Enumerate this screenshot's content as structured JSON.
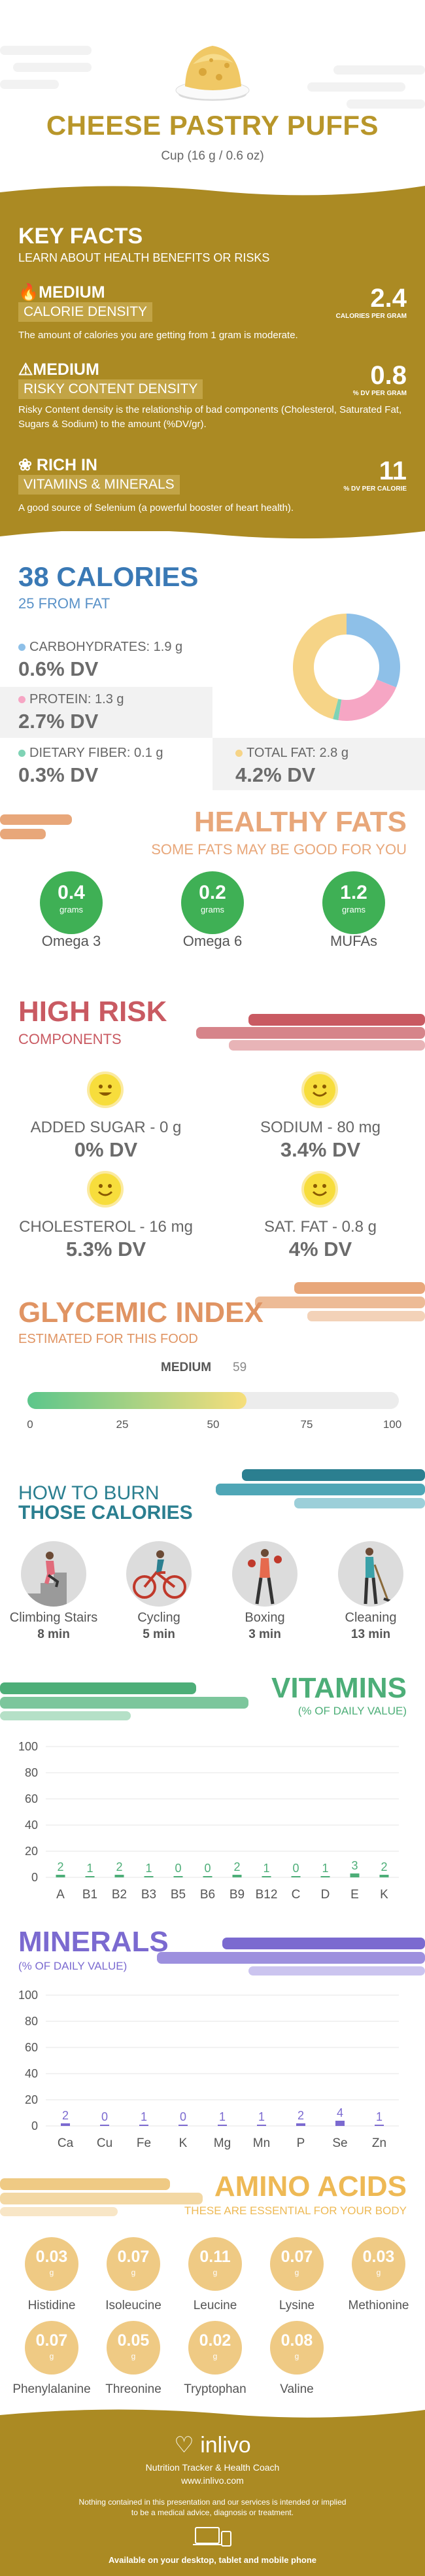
{
  "header": {
    "title": "CHEESE PASTRY PUFFS",
    "serving": "Cup (16 g / 0.6 oz)"
  },
  "key_facts": {
    "title": "KEY FACTS",
    "subtitle": "LEARN ABOUT HEALTH BENEFITS OR RISKS",
    "items": [
      {
        "level": "MEDIUM",
        "label": "CALORIE DENSITY",
        "value": "2.4",
        "unit": "CALORIES PER GRAM",
        "text": "The amount of calories you are getting from 1 gram is moderate."
      },
      {
        "level": "MEDIUM",
        "label": "RISKY CONTENT DENSITY",
        "value": "0.8",
        "unit": "% DV PER GRAM",
        "text": "Risky Content density is the relationship of bad components (Cholesterol, Saturated Fat, Sugars & Sodium) to the amount (%DV/gr)."
      },
      {
        "level": "RICH  IN",
        "label": "VITAMINS & MINERALS",
        "value": "11",
        "unit": "% DV PER CALORIE",
        "text": "A good source of Selenium (a powerful booster of heart health)."
      }
    ]
  },
  "calories": {
    "title": "38 CALORIES",
    "subtitle": "25 FROM FAT",
    "macros": [
      {
        "label": "CARBOHYDRATES: 1.9 g",
        "dv": "0.6% DV",
        "color": "#8ec0e8"
      },
      {
        "label": "PROTEIN: 1.3 g",
        "dv": "2.7% DV",
        "color": "#f6a6c4"
      },
      {
        "label": "DIETARY FIBER: 0.1 g",
        "dv": "0.3% DV",
        "color": "#7fd3b5"
      },
      {
        "label": "TOTAL FAT: 2.8 g",
        "dv": "4.2% DV",
        "color": "#f6d487"
      }
    ],
    "donut": [
      {
        "name": "carbs",
        "value": 1.9,
        "color": "#8ec0e8"
      },
      {
        "name": "protein",
        "value": 1.3,
        "color": "#f6a6c4"
      },
      {
        "name": "fiber",
        "value": 0.1,
        "color": "#7fd3b5"
      },
      {
        "name": "fat",
        "value": 2.8,
        "color": "#f6d487"
      }
    ]
  },
  "healthy_fats": {
    "title": "HEALTHY FATS",
    "subtitle": "SOME FATS MAY BE GOOD FOR YOU",
    "unit": "grams",
    "items": [
      {
        "value": "0.4",
        "label": "Omega 3"
      },
      {
        "value": "0.2",
        "label": "Omega 6"
      },
      {
        "value": "1.2",
        "label": "MUFAs"
      }
    ]
  },
  "high_risk": {
    "title": "HIGH RISK",
    "subtitle": "COMPONENTS",
    "items": [
      {
        "label": "ADDED SUGAR - 0 g",
        "dv": "0% DV"
      },
      {
        "label": "SODIUM - 80 mg",
        "dv": "3.4% DV"
      },
      {
        "label": "CHOLESTEROL - 16 mg",
        "dv": "5.3% DV"
      },
      {
        "label": "SAT. FAT - 0.8 g",
        "dv": "4% DV"
      }
    ]
  },
  "glycemic": {
    "title": "GLYCEMIC INDEX",
    "subtitle": "ESTIMATED FOR THIS FOOD",
    "level": "MEDIUM",
    "value": 59,
    "value_text": "59",
    "ticks": [
      "0",
      "25",
      "50",
      "75",
      "100"
    ]
  },
  "burn": {
    "title_1": "HOW TO BURN",
    "title_2": "THOSE CALORIES",
    "items": [
      {
        "label": "Climbing Stairs",
        "time": "8 min",
        "icon": "stairs-person-icon"
      },
      {
        "label": "Cycling",
        "time": "5 min",
        "icon": "cyclist-icon"
      },
      {
        "label": "Boxing",
        "time": "3 min",
        "icon": "boxer-icon"
      },
      {
        "label": "Cleaning",
        "time": "13 min",
        "icon": "cleaning-person-icon"
      }
    ]
  },
  "vitamins": {
    "title": "VITAMINS",
    "subtitle": "(% OF DAILY VALUE)",
    "color": "#4dae78"
  },
  "minerals": {
    "title": "MINERALS",
    "subtitle": "(% OF DAILY VALUE)",
    "color": "#7b6ad0"
  },
  "amino": {
    "title": "AMINO ACIDS",
    "subtitle": "THESE ARE ESSENTIAL FOR YOUR BODY",
    "unit": "g",
    "items": [
      {
        "value": "0.03",
        "label": "Histidine"
      },
      {
        "value": "0.07",
        "label": "Isoleucine"
      },
      {
        "value": "0.11",
        "label": "Leucine"
      },
      {
        "value": "0.07",
        "label": "Lysine"
      },
      {
        "value": "0.03",
        "label": "Methionine"
      },
      {
        "value": "0.07",
        "label": "Phenylalanine"
      },
      {
        "value": "0.05",
        "label": "Threonine"
      },
      {
        "value": "0.02",
        "label": "Tryptophan"
      },
      {
        "value": "0.08",
        "label": "Valine"
      }
    ]
  },
  "footer": {
    "brand": "inlivo",
    "tagline": "Nutrition Tracker & Health Coach",
    "url": "www.inlivo.com",
    "disclaimer_1": "Nothing contained in this presentation and our services is intended or implied",
    "disclaimer_2": "to be a medical advice, diagnosis or treatment.",
    "devices": "Available on your desktop, tablet and mobile phone"
  },
  "chart_data": [
    {
      "type": "bar",
      "title": "VITAMINS",
      "subtitle": "(% OF DAILY VALUE)",
      "categories": [
        "A",
        "B1",
        "B2",
        "B3",
        "B5",
        "B6",
        "B9",
        "B12",
        "C",
        "D",
        "E",
        "K"
      ],
      "values": [
        2,
        1,
        2,
        1,
        0,
        0,
        2,
        1,
        0,
        1,
        3,
        2
      ],
      "ylim": [
        0,
        100
      ],
      "yticks": [
        "0",
        "20",
        "40",
        "60",
        "80",
        "100"
      ]
    },
    {
      "type": "bar",
      "title": "MINERALS",
      "subtitle": "(% OF DAILY VALUE)",
      "categories": [
        "Ca",
        "Cu",
        "Fe",
        "K",
        "Mg",
        "Mn",
        "P",
        "Se",
        "Zn"
      ],
      "values": [
        2,
        0,
        1,
        0,
        1,
        1,
        2,
        4,
        1
      ],
      "ylim": [
        0,
        100
      ],
      "yticks": [
        "0",
        "20",
        "40",
        "60",
        "80",
        "100"
      ]
    }
  ]
}
